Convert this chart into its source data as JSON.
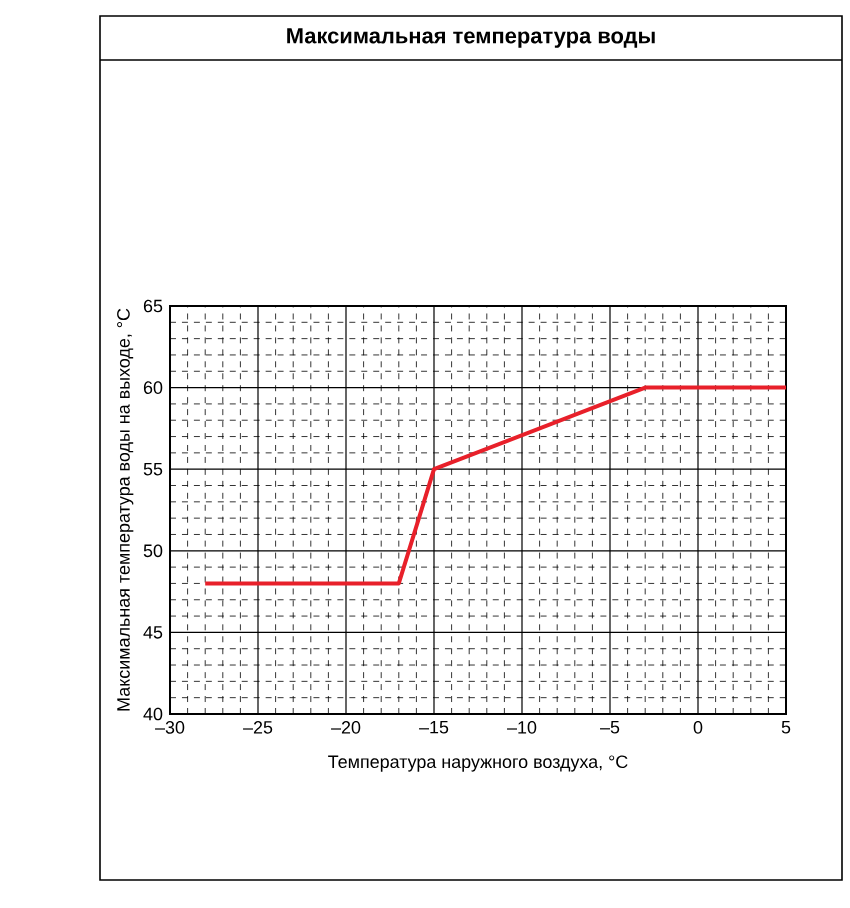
{
  "chart_data": {
    "type": "line",
    "title": "Максимальная температура воды",
    "xlabel": "Температура наружного воздуха, °C",
    "ylabel": "Максимальная температура воды на выходе, °C",
    "x": [
      -28,
      -17,
      -15,
      -3,
      5
    ],
    "values": [
      48,
      48,
      55,
      60,
      60
    ],
    "color": "#e8202a",
    "xlim": [
      -30,
      5
    ],
    "ylim": [
      40,
      65
    ],
    "xticks": [
      {
        "value": -30,
        "label": "–30"
      },
      {
        "value": -25,
        "label": "–25"
      },
      {
        "value": -20,
        "label": "–20"
      },
      {
        "value": -15,
        "label": "–15"
      },
      {
        "value": -10,
        "label": "–10"
      },
      {
        "value": -5,
        "label": "–5"
      },
      0,
      5
    ],
    "yticks": [
      40,
      45,
      50,
      55,
      60,
      65
    ],
    "grid": true
  }
}
